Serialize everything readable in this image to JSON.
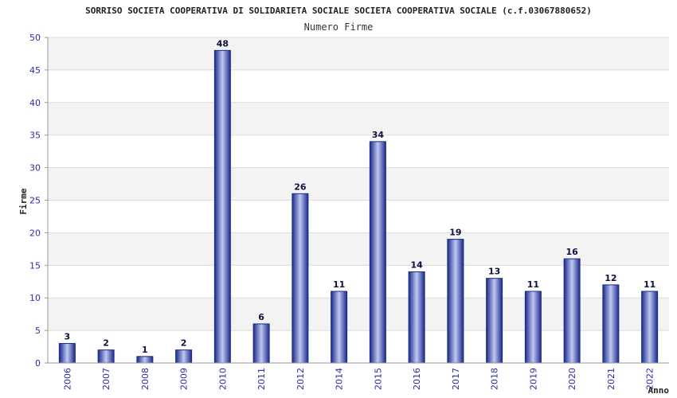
{
  "chart_data": {
    "type": "bar",
    "title": "SORRISO SOCIETA COOPERATIVA DI SOLIDARIETA SOCIALE SOCIETA COOPERATIVA SOCIALE (c.f.03067880652)",
    "subtitle": "Numero Firme",
    "xlabel": "Anno",
    "ylabel": "Firme",
    "categories": [
      "2006",
      "2007",
      "2008",
      "2009",
      "2010",
      "2011",
      "2012",
      "2014",
      "2015",
      "2016",
      "2017",
      "2018",
      "2019",
      "2020",
      "2021",
      "2022"
    ],
    "values": [
      3,
      2,
      1,
      2,
      48,
      6,
      26,
      11,
      34,
      14,
      19,
      13,
      11,
      16,
      12,
      11
    ],
    "ylim": [
      0,
      50
    ],
    "yticks": [
      0,
      5,
      10,
      15,
      20,
      25,
      30,
      35,
      40,
      45,
      50
    ],
    "grid": true,
    "legend": "none"
  },
  "colors": {
    "bar_dark": "#1a2a8a",
    "bar_light": "#b8c4f0",
    "band_light": "#f3f3f3",
    "band_white": "#ffffff",
    "axis_text": "#2b2ba8"
  }
}
